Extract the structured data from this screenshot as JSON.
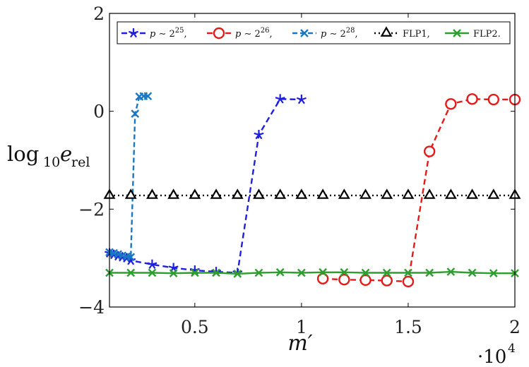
{
  "chart_data": {
    "type": "line",
    "xlabel": "m′",
    "x_scale_note": "·10^4",
    "x_scale_base": "·10",
    "x_scale_exp": "4",
    "ylabel_main": "log",
    "ylabel_sub1": "10",
    "ylabel_var": "e",
    "ylabel_sub2": "rel",
    "xlim": [
      1000,
      20000
    ],
    "ylim": [
      -4,
      2
    ],
    "xticks": [
      5000,
      10000,
      15000,
      20000
    ],
    "xtick_labels": [
      "0.5",
      "1",
      "1.5",
      "2"
    ],
    "yticks": [
      -4,
      -2,
      0,
      2
    ],
    "ytick_labels": [
      "−4",
      "−2",
      "0",
      "2"
    ],
    "grid": false,
    "legend_position": "top",
    "series": [
      {
        "name": "p ∼ 2^25,",
        "legend": {
          "p": "p",
          "sim": " ∼ 2",
          "exp": "25",
          "tail": ","
        },
        "color": "#1f1fe0",
        "dash": "8,5",
        "marker": "star",
        "x": [
          1000,
          1200,
          1400,
          1600,
          1800,
          2000,
          3000,
          4000,
          5000,
          6000,
          7000,
          8000,
          9000,
          10000
        ],
        "y": [
          -2.9,
          -2.93,
          -2.96,
          -2.98,
          -3.0,
          -3.05,
          -3.13,
          -3.2,
          -3.25,
          -3.28,
          -3.3,
          -0.48,
          0.25,
          0.24
        ]
      },
      {
        "name": "p ∼ 2^26,",
        "legend": {
          "p": "p",
          "sim": " ∼ 2",
          "exp": "26",
          "tail": ","
        },
        "color": "#e41a1a",
        "dash": "8,5",
        "marker": "circle",
        "x": [
          11000,
          12000,
          13000,
          14000,
          15000,
          16000,
          17000,
          18000,
          19000,
          20000
        ],
        "y": [
          -3.42,
          -3.44,
          -3.45,
          -3.46,
          -3.48,
          -0.82,
          0.15,
          0.25,
          0.24,
          0.24
        ]
      },
      {
        "name": "p ∼ 2^28,",
        "legend": {
          "p": "p",
          "sim": " ∼ 2",
          "exp": "28",
          "tail": ","
        },
        "color": "#1a78c2",
        "dash": "7,4",
        "marker": "x",
        "x": [
          1000,
          1200,
          1400,
          1600,
          1800,
          2000,
          2200,
          2400,
          2600,
          2800
        ],
        "y": [
          -2.88,
          -2.9,
          -2.92,
          -2.95,
          -2.97,
          -2.98,
          -0.05,
          0.3,
          0.31,
          0.31
        ]
      },
      {
        "name": "FLP1,",
        "legend": {
          "p": "",
          "sim": "FLP1,",
          "exp": "",
          "tail": ""
        },
        "color": "#000000",
        "dash": "2,4",
        "marker": "triangle",
        "x": [
          1000,
          2000,
          3000,
          4000,
          5000,
          6000,
          7000,
          8000,
          9000,
          10000,
          11000,
          12000,
          13000,
          14000,
          15000,
          16000,
          17000,
          18000,
          19000,
          20000
        ],
        "y": [
          -1.72,
          -1.72,
          -1.72,
          -1.72,
          -1.72,
          -1.72,
          -1.72,
          -1.72,
          -1.72,
          -1.72,
          -1.72,
          -1.72,
          -1.72,
          -1.72,
          -1.72,
          -1.72,
          -1.72,
          -1.72,
          -1.72,
          -1.72
        ]
      },
      {
        "name": "FLP2.",
        "legend": {
          "p": "",
          "sim": "FLP2.",
          "exp": "",
          "tail": ""
        },
        "color": "#2e9e2e",
        "dash": "",
        "marker": "x",
        "x": [
          1000,
          2000,
          3000,
          4000,
          5000,
          6000,
          7000,
          8000,
          9000,
          10000,
          11000,
          12000,
          13000,
          14000,
          15000,
          16000,
          17000,
          18000,
          19000,
          20000
        ],
        "y": [
          -3.3,
          -3.3,
          -3.3,
          -3.31,
          -3.3,
          -3.3,
          -3.32,
          -3.3,
          -3.29,
          -3.3,
          -3.29,
          -3.29,
          -3.3,
          -3.3,
          -3.3,
          -3.3,
          -3.28,
          -3.3,
          -3.31,
          -3.31
        ]
      }
    ]
  }
}
